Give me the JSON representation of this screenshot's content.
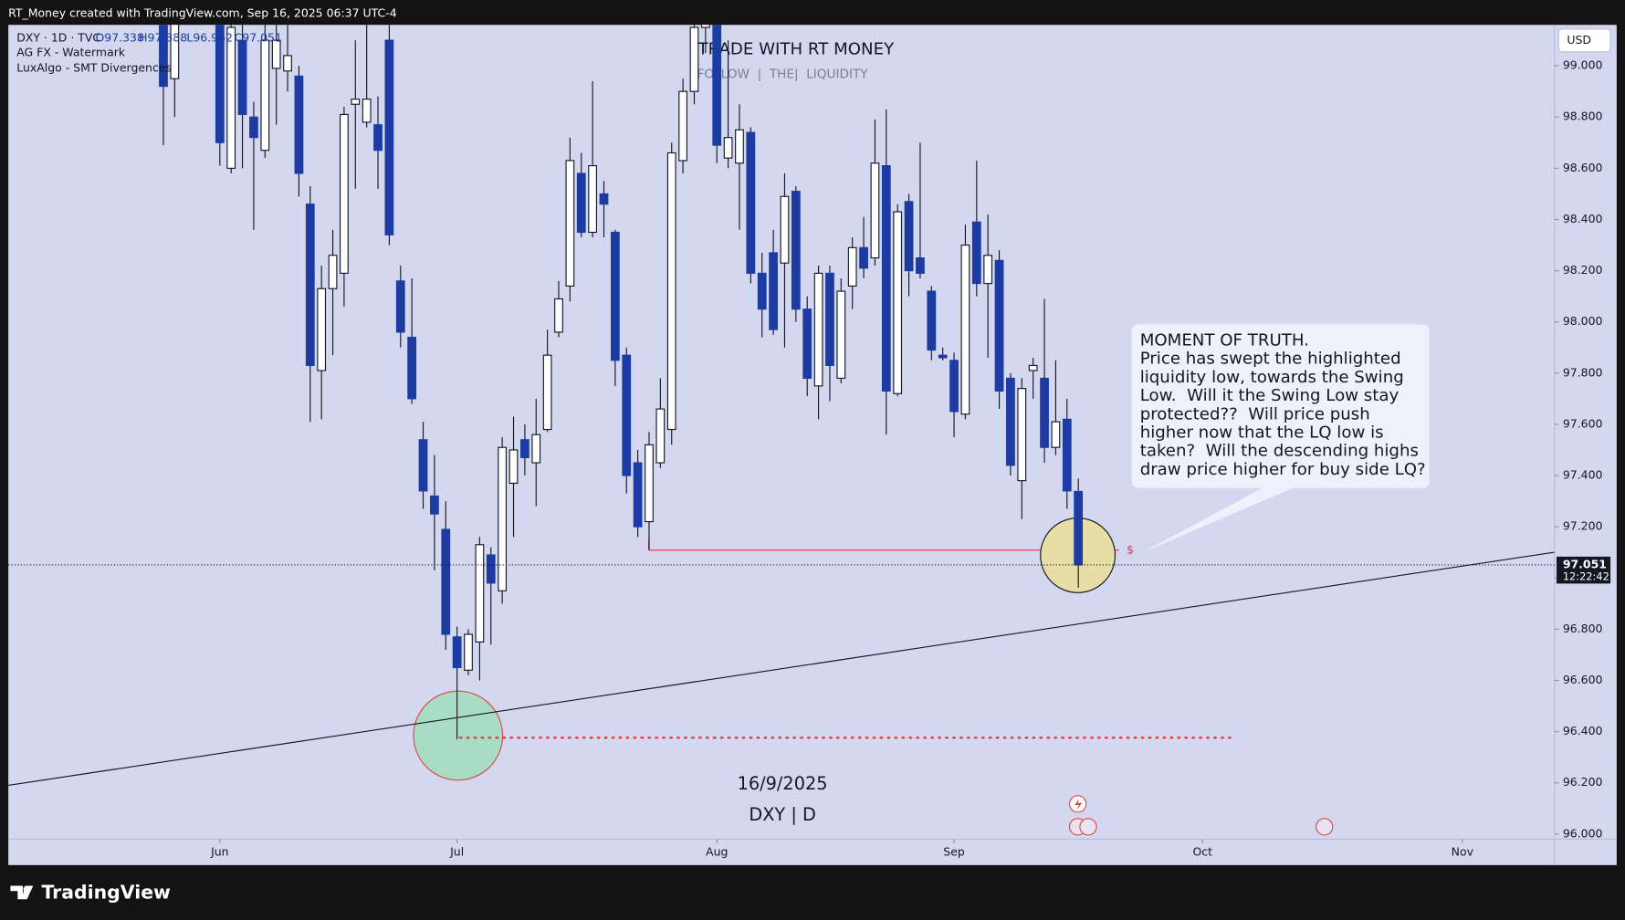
{
  "header": "RT_Money created with TradingView.com, Sep 16, 2025 06:37 UTC-4",
  "legend": {
    "symbol": "DXY · 1D · TVC",
    "ohlc": [
      "O97.338",
      "H97.388",
      "L96.962",
      "C97.051"
    ],
    "indicators": [
      "AG FX - Watermark",
      "LuxAlgo - SMT Divergences"
    ]
  },
  "watermark": {
    "title": "TRADE WITH RT MONEY",
    "subtitle": "FOLLOW  |  THE|  LIQUIDITY",
    "date": "16/9/2025",
    "symbol": "DXY | D"
  },
  "callout": {
    "lines": [
      "MOMENT OF TRUTH.",
      "Price has swept the highlighted",
      "liquidity low, towards the Swing",
      "Low.  Will it the Swing Low stay",
      "protected??  Will price push",
      "higher now that the LQ low is",
      "taken?  Will the descending highs",
      "draw price higher for buy side LQ?"
    ],
    "marker": "$"
  },
  "brand": "TradingView",
  "chart_data": {
    "type": "candlestick",
    "currency": "USD",
    "up_color": "#ffffff",
    "down_color": "#1c3ba3",
    "categories": [
      null,
      null,
      null,
      null,
      null,
      "Jun",
      null,
      null,
      null,
      null,
      null,
      null,
      null,
      null,
      null,
      null,
      null,
      null,
      null,
      null,
      null,
      null,
      null,
      null,
      null,
      null,
      "Jul",
      null,
      null,
      null,
      null,
      null,
      null,
      null,
      null,
      null,
      null,
      null,
      null,
      null,
      null,
      null,
      null,
      null,
      null,
      null,
      null,
      null,
      null,
      "Aug",
      null,
      null,
      null,
      null,
      null,
      null,
      null,
      null,
      null,
      null,
      null,
      null,
      null,
      null,
      null,
      null,
      null,
      null,
      null,
      null,
      "Sep",
      null,
      null,
      null,
      null,
      null,
      null,
      null,
      null,
      null,
      null,
      null,
      null,
      null,
      null,
      null,
      null,
      null,
      null,
      null,
      null,
      null,
      "Oct",
      null,
      null,
      null,
      null,
      null,
      null,
      null,
      null,
      null,
      null,
      null,
      null,
      null,
      null,
      null,
      null,
      null,
      null,
      null,
      null,
      null,
      null,
      "Nov",
      null,
      null,
      null,
      null,
      null,
      null,
      null
    ],
    "open": [
      99.35,
      98.95,
      99.3,
      99.4,
      99.35,
      99.25,
      98.6,
      99.1,
      98.8,
      98.67,
      98.99,
      98.98,
      98.96,
      98.46,
      97.81,
      98.13,
      98.19,
      98.85,
      98.78,
      98.77,
      99.1,
      98.16,
      97.94,
      97.54,
      97.32,
      97.19,
      96.77,
      96.64,
      96.75,
      97.09,
      96.95,
      97.37,
      97.54,
      97.45,
      97.58,
      97.96,
      98.14,
      98.58,
      98.35,
      98.5,
      98.35,
      97.87,
      97.45,
      97.22,
      97.45,
      97.58,
      98.63,
      98.9,
      99.15,
      99.2,
      98.64,
      98.62,
      98.74,
      98.19,
      98.27,
      98.23,
      98.51,
      98.05,
      97.75,
      98.19,
      97.78,
      98.14,
      98.29,
      98.25,
      98.61,
      97.72,
      98.47,
      98.25,
      98.12,
      97.87,
      97.85,
      97.64,
      98.39,
      98.15,
      98.24,
      97.78,
      97.38,
      97.81,
      97.78,
      97.51,
      97.62,
      97.338,
      null,
      null,
      null,
      null,
      null,
      null,
      null,
      null,
      null,
      null,
      null,
      null,
      null,
      null,
      null,
      null,
      null,
      null,
      null,
      null,
      null,
      null,
      null,
      null,
      null,
      null,
      null,
      null,
      null,
      null,
      null,
      null,
      null,
      null,
      null,
      null,
      null,
      null,
      null,
      null,
      null
    ],
    "high": [
      99.45,
      99.4,
      99.5,
      99.55,
      99.45,
      99.3,
      99.3,
      99.3,
      98.86,
      99.2,
      99.16,
      99.16,
      99.0,
      98.53,
      98.22,
      98.36,
      98.84,
      99.1,
      99.16,
      98.88,
      99.2,
      98.22,
      98.17,
      97.61,
      97.48,
      97.3,
      96.81,
      96.8,
      97.16,
      97.12,
      97.55,
      97.63,
      97.6,
      97.7,
      97.97,
      98.16,
      98.72,
      98.66,
      98.94,
      98.55,
      98.36,
      97.9,
      97.5,
      97.57,
      97.78,
      98.7,
      98.95,
      99.2,
      99.4,
      99.25,
      99.1,
      98.85,
      98.76,
      98.27,
      98.36,
      98.58,
      98.53,
      98.1,
      98.22,
      98.22,
      98.17,
      98.33,
      98.41,
      98.79,
      98.83,
      98.46,
      98.5,
      98.7,
      98.14,
      97.9,
      97.88,
      98.38,
      98.63,
      98.42,
      98.28,
      97.8,
      97.78,
      97.86,
      98.09,
      97.85,
      97.7,
      97.388,
      null,
      null,
      null,
      null,
      null,
      null,
      null,
      null,
      null,
      null,
      null,
      null,
      null,
      null,
      null,
      null,
      null,
      null,
      null,
      null,
      null,
      null,
      null,
      null,
      null,
      null,
      null,
      null,
      null,
      null,
      null,
      null,
      null,
      null,
      null,
      null,
      null,
      null,
      null,
      null,
      null
    ],
    "low": [
      98.69,
      98.8,
      99.2,
      99.25,
      99.17,
      98.61,
      98.58,
      98.6,
      98.36,
      98.64,
      98.77,
      98.9,
      98.49,
      97.61,
      97.62,
      97.87,
      98.06,
      98.52,
      98.76,
      98.52,
      98.3,
      97.9,
      97.68,
      97.27,
      97.03,
      96.72,
      96.37,
      96.62,
      96.6,
      96.74,
      96.9,
      97.16,
      97.4,
      97.28,
      97.57,
      97.94,
      98.08,
      98.33,
      98.33,
      98.33,
      97.75,
      97.33,
      97.16,
      97.11,
      97.43,
      97.52,
      98.58,
      98.85,
      99.05,
      98.62,
      98.6,
      98.36,
      98.15,
      97.94,
      97.95,
      97.9,
      98.0,
      97.71,
      97.62,
      97.69,
      97.76,
      98.05,
      98.17,
      98.22,
      97.56,
      97.71,
      98.1,
      98.17,
      97.85,
      97.85,
      97.55,
      97.62,
      98.1,
      97.86,
      97.66,
      97.4,
      97.23,
      97.7,
      97.45,
      97.48,
      97.27,
      96.962,
      null,
      null,
      null,
      null,
      null,
      null,
      null,
      null,
      null,
      null,
      null,
      null,
      null,
      null,
      null,
      null,
      null,
      null,
      null,
      null,
      null,
      null,
      null,
      null,
      null,
      null,
      null,
      null,
      null,
      null,
      null,
      null,
      null,
      null,
      null,
      null,
      null,
      null,
      null,
      null,
      null
    ],
    "close": [
      98.92,
      99.3,
      99.4,
      99.35,
      99.25,
      98.7,
      99.15,
      98.81,
      98.72,
      99.1,
      99.1,
      99.04,
      98.58,
      97.83,
      98.13,
      98.26,
      98.81,
      98.87,
      98.87,
      98.67,
      98.34,
      97.96,
      97.7,
      97.34,
      97.25,
      96.78,
      96.65,
      96.78,
      97.13,
      96.98,
      97.51,
      97.5,
      97.47,
      97.56,
      97.87,
      98.09,
      98.63,
      98.35,
      98.61,
      98.46,
      97.85,
      97.4,
      97.2,
      97.52,
      97.66,
      98.66,
      98.9,
      99.15,
      99.3,
      98.69,
      98.72,
      98.75,
      98.19,
      98.05,
      97.97,
      98.49,
      98.05,
      97.78,
      98.19,
      97.83,
      98.12,
      98.29,
      98.21,
      98.62,
      97.73,
      98.43,
      98.2,
      98.19,
      97.89,
      97.86,
      97.65,
      98.3,
      98.15,
      98.26,
      97.73,
      97.44,
      97.74,
      97.83,
      97.51,
      97.61,
      97.34,
      97.051,
      null,
      null,
      null,
      null,
      null,
      null,
      null,
      null,
      null,
      null,
      null,
      null,
      null,
      null,
      null,
      null,
      null,
      null,
      null,
      null,
      null,
      null,
      null,
      null,
      null,
      null,
      null,
      null,
      null,
      null,
      null,
      null,
      null,
      null,
      null,
      null,
      null,
      null,
      null,
      null,
      null
    ],
    "ylim": [
      95.98,
      99.16
    ],
    "yticks": [
      {
        "value": 96,
        "label": "96.000"
      },
      {
        "value": 96.2,
        "label": "96.200"
      },
      {
        "value": 96.4,
        "label": "96.400"
      },
      {
        "value": 96.6,
        "label": "96.600"
      },
      {
        "value": 96.8,
        "label": "96.800"
      },
      {
        "value": 97,
        "label": "97.000"
      },
      {
        "value": 97.2,
        "label": "97.200"
      },
      {
        "value": 97.4,
        "label": "97.400"
      },
      {
        "value": 97.6,
        "label": "97.600"
      },
      {
        "value": 97.8,
        "label": "97.800"
      },
      {
        "value": 98,
        "label": "98.000"
      },
      {
        "value": 98.2,
        "label": "98.200"
      },
      {
        "value": 98.4,
        "label": "98.400"
      },
      {
        "value": 98.6,
        "label": "98.600"
      },
      {
        "value": 98.8,
        "label": "98.800"
      },
      {
        "value": 99,
        "label": "99.000"
      }
    ],
    "last_price": {
      "value": 97.051,
      "label": "97.051",
      "countdown": "12:22:42"
    }
  }
}
